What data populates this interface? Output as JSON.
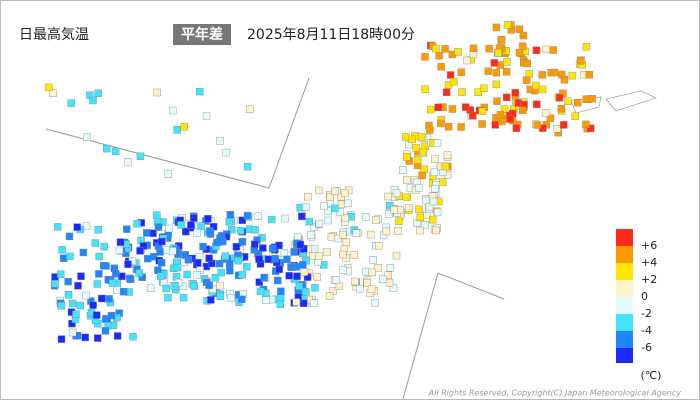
{
  "header": {
    "title": "日最高気温",
    "badge": "平年差",
    "datetime": "2025年8月11日18時00分"
  },
  "legend": {
    "colors": [
      "#ff2a1a",
      "#ff9900",
      "#ffe600",
      "#fff2c8",
      "#e4fbff",
      "#40e4ff",
      "#1f86ff",
      "#1a2bff"
    ],
    "labels": [
      "+6",
      "+4",
      "+2",
      "0",
      "-2",
      "-4",
      "-6"
    ],
    "unit": "(℃)"
  },
  "footer": {
    "copyright": "All Rights Reserved, Copyright(C) Japan Meteorological Agency"
  }
}
